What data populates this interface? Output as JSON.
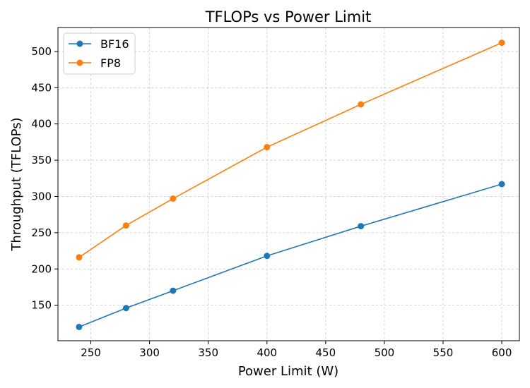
{
  "chart_data": {
    "type": "line",
    "title": "TFLOPs vs Power Limit",
    "xlabel": "Power Limit (W)",
    "ylabel": "Throughput (TFLOPs)",
    "x": [
      240,
      280,
      320,
      400,
      480,
      600
    ],
    "xlim": [
      222,
      615
    ],
    "ylim": [
      101,
      533
    ],
    "xticks": [
      250,
      300,
      350,
      400,
      450,
      500,
      550,
      600
    ],
    "yticks": [
      150,
      200,
      250,
      300,
      350,
      400,
      450,
      500
    ],
    "grid": true,
    "legend_position": "top-left",
    "series": [
      {
        "name": "BF16",
        "color": "#1f77b4",
        "values": [
          120,
          146,
          170,
          218,
          259,
          317
        ]
      },
      {
        "name": "FP8",
        "color": "#ff7f0e",
        "values": [
          216,
          260,
          297,
          368,
          427,
          512
        ]
      }
    ]
  }
}
